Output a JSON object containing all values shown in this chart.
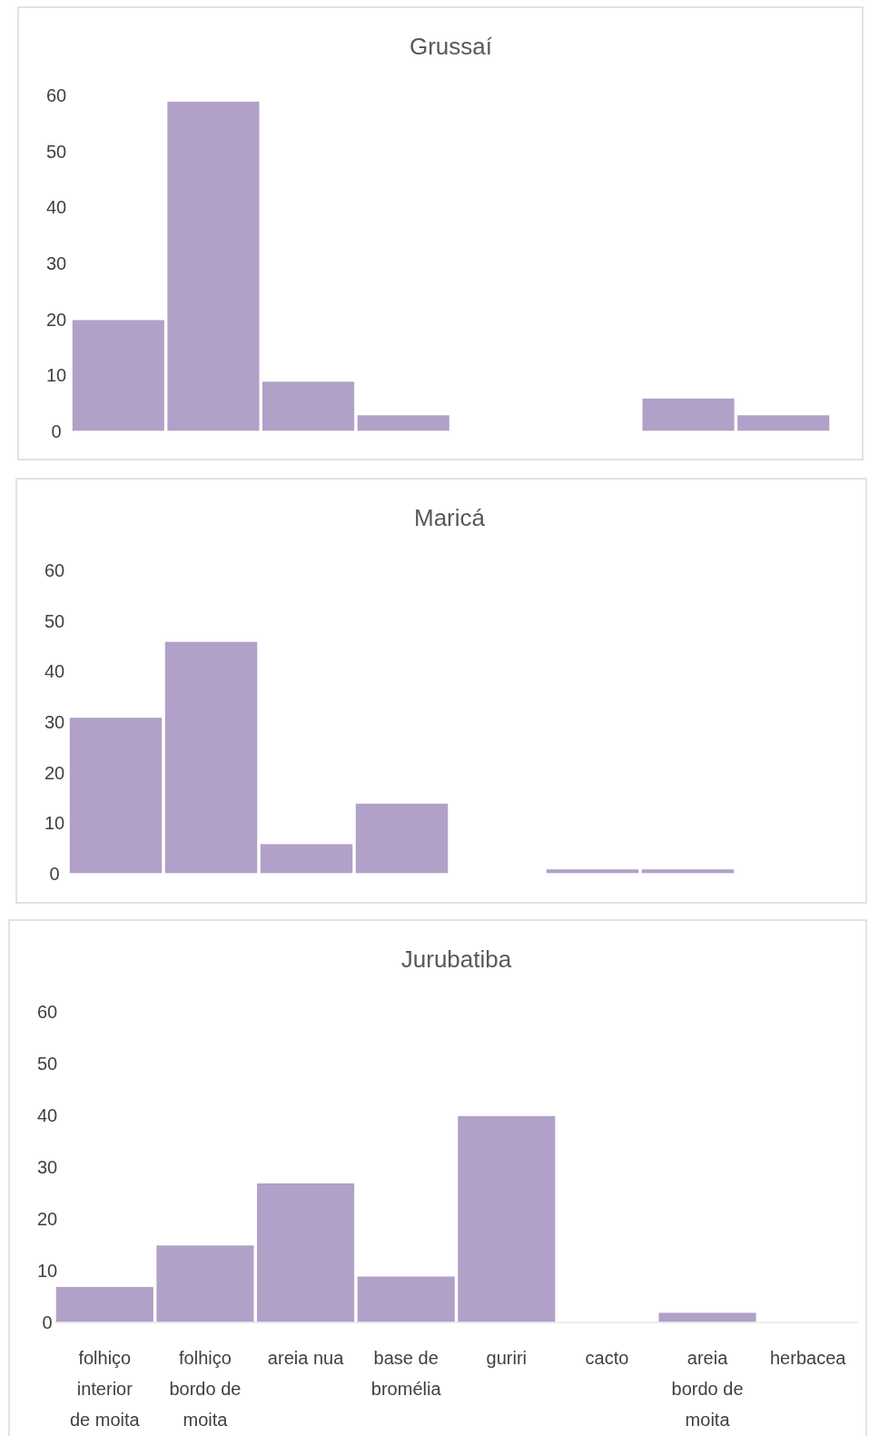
{
  "chart_data": [
    {
      "type": "bar",
      "title": "Grussaí",
      "categories": [
        "folhiço interior de moita",
        "folhiço bordo de moita",
        "areia nua",
        "base de bromélia",
        "guriri",
        "cacto",
        "areia bordo de moita",
        "herbacea"
      ],
      "values": [
        20,
        59,
        9,
        3,
        0,
        0,
        6,
        3
      ],
      "color": "#b1a0c7",
      "ylim": [
        0,
        60
      ],
      "yticks": [
        0,
        10,
        20,
        30,
        40,
        50,
        60
      ],
      "tick_labels": "y"
    },
    {
      "type": "bar",
      "title": "Maricá",
      "categories": [
        "folhiço interior de moita",
        "folhiço bordo de moita",
        "areia nua",
        "base de bromélia",
        "guriri",
        "cacto",
        "areia bordo de moita",
        "herbacea"
      ],
      "values": [
        31,
        46,
        6,
        14,
        0,
        1,
        1,
        0
      ],
      "color": "#b1a0c7",
      "ylim": [
        0,
        60
      ],
      "yticks": [
        0,
        10,
        20,
        30,
        40,
        50,
        60
      ],
      "tick_labels": "y"
    },
    {
      "type": "bar",
      "title": "Jurubatiba",
      "categories": [
        "folhiço interior de moita",
        "folhiço bordo de moita",
        "areia nua",
        "base de bromélia",
        "guriri",
        "cacto",
        "areia bordo de moita",
        "herbacea"
      ],
      "values": [
        7,
        15,
        27,
        9,
        40,
        0,
        2,
        0
      ],
      "color": "#b1a0c7",
      "ylim": [
        0,
        60
      ],
      "yticks": [
        0,
        10,
        20,
        30,
        40,
        50,
        60
      ]
    }
  ]
}
